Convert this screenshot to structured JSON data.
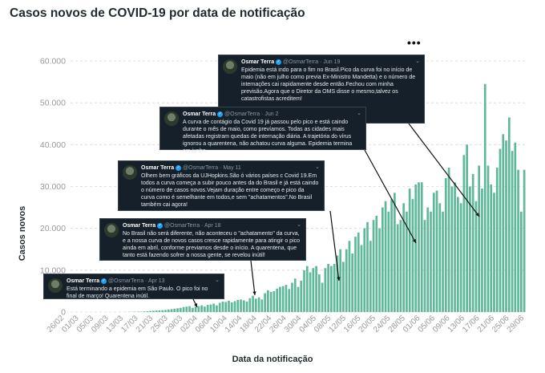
{
  "title": "Casos novos de COVID-19 por data de notificação",
  "more_icon": "•••",
  "chart_data": {
    "type": "bar",
    "xlabel": "Data da notificação",
    "ylabel": "Casos novos",
    "ylim": [
      0,
      60000
    ],
    "yticks": [
      "0",
      "10.000",
      "20.000",
      "30.000",
      "40.000",
      "50.000",
      "60.000"
    ],
    "bar_color": "#5fb89a",
    "grid": true,
    "x_tick_labels": [
      "26/02",
      "01/03",
      "05/03",
      "09/03",
      "13/03",
      "17/03",
      "21/03",
      "25/03",
      "29/03",
      "02/04",
      "06/04",
      "10/04",
      "14/04",
      "18/04",
      "22/04",
      "26/04",
      "30/04",
      "04/05",
      "08/05",
      "12/05",
      "16/05",
      "20/05",
      "24/05",
      "28/05",
      "01/06",
      "05/06",
      "09/06",
      "13/06",
      "17/06",
      "21/06",
      "25/06",
      "29/06"
    ],
    "values": [
      0,
      0,
      0,
      0,
      0,
      0,
      0,
      0,
      0,
      0,
      0,
      0,
      0,
      0,
      0,
      0,
      0,
      10,
      20,
      30,
      50,
      60,
      80,
      100,
      150,
      200,
      250,
      300,
      350,
      400,
      450,
      500,
      600,
      700,
      800,
      900,
      1000,
      1200,
      1300,
      1400,
      1000,
      1300,
      1400,
      1600,
      1300,
      1700,
      1800,
      2000,
      1600,
      2200,
      2500,
      2400,
      2700,
      2300,
      2600,
      2900,
      3000,
      2800,
      2500,
      3300,
      3900,
      3200,
      3500,
      3000,
      4500,
      5200,
      4800,
      5000,
      5600,
      6000,
      6200,
      6500,
      5500,
      7000,
      8000,
      6000,
      7500,
      10000,
      11000,
      9500,
      10500,
      11000,
      9000,
      7000,
      10500,
      11500,
      11000,
      11500,
      13500,
      15000,
      12000,
      15000,
      17000,
      14000,
      18000,
      19000,
      16000,
      20000,
      21500,
      17000,
      22000,
      23000,
      20000,
      25000,
      26500,
      24000,
      27000,
      28500,
      21000,
      22000,
      26000,
      24000,
      29500,
      27000,
      30500,
      31000,
      31000,
      22000,
      25000,
      24000,
      28500,
      29000,
      26000,
      24000,
      32000,
      34500,
      30000,
      31000,
      27500,
      26000,
      37500,
      40000,
      30000,
      33000,
      26500,
      35000,
      29500,
      54500,
      35000,
      30500,
      28500,
      34500,
      39000,
      42500,
      41000,
      46500,
      38500,
      40500,
      34000,
      24000,
      34000
    ]
  },
  "tweets": [
    {
      "name": "Osmar Terra",
      "handle": "@OsmarTerra",
      "date": "Jun 19",
      "text": "Epidemia está indo para o fim no Brasil.Pico da curva foi no início de maio (não em julho como previa Ex-Ministro Mandetta) e o número de internações cai rapidamente desde então.Fechou com minha previsão.Agora que o Diretor da OMS disse o mesmo,talvez os catastrofistas acreditem!"
    },
    {
      "name": "Osmar Terra",
      "handle": "@OsmarTerra",
      "date": "Jun 2",
      "text": "A curva de contágio da Covid 19 já passou pelo pico e está caindo durante o mês de maio, como prevíamos. Todas as cidades mais afetadas registram quedas de internação diária. A trajetória do vírus ignorou a quarentena, não achatou curva alguma. Epidemia termina em junho."
    },
    {
      "name": "Osmar Terra",
      "handle": "@OsmarTerra",
      "date": "May 11",
      "text": "Olhem bem gráficos  da UJHopkins.São ó vários países c Covid 19.Em todos a curva começa a subir pouco antes da do Brasil e já está caindo o número de casos novos.Vejam duração entre começo e pico da curva como é semelhante em todos,e sem \"achatamentos\".No Brasil também cai agora!"
    },
    {
      "name": "Osmar Terra",
      "handle": "@OsmarTerra",
      "date": "Apr 18",
      "text": "No Brasil não será diferente, não aconteceu o \"achatamento\" da curva, e a nossa curva de novos casos cresce rapidamente para atingir o pico ainda em abril,  conforme previamos desde o início. A quarentena, que tanto está fazendo sofrer a nossa gente, se revelou inútil!"
    },
    {
      "name": "Osmar Terra",
      "handle": "@OsmarTerra",
      "date": "Apr 13",
      "text": "Está terminando a epidemia em São Paulo. O pico foi no final de março! Quarentena inútil."
    }
  ]
}
